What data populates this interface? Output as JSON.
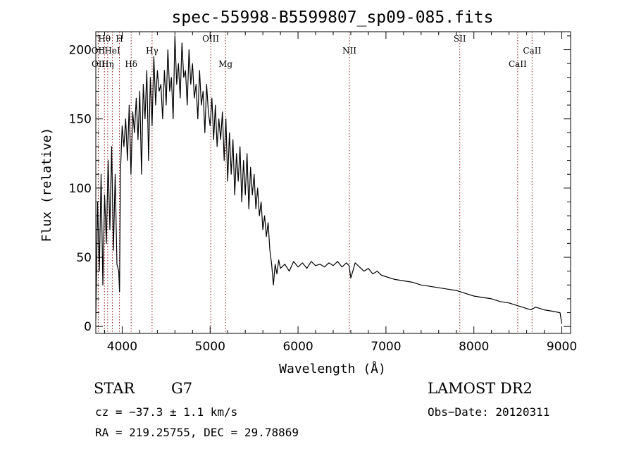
{
  "chart_data": {
    "type": "line",
    "title": "spec-55998-B5599807_sp09-085.fits",
    "xlabel": "Wavelength (Å)",
    "ylabel": "Flux (relative)",
    "xlim": [
      3700,
      9100
    ],
    "ylim": [
      -5,
      213
    ],
    "xticks": [
      4000,
      5000,
      6000,
      7000,
      8000,
      9000
    ],
    "yticks": [
      0,
      50,
      100,
      150,
      200
    ],
    "grid": false,
    "series": [
      {
        "x": [
          3700,
          3720,
          3740,
          3760,
          3780,
          3800,
          3820,
          3840,
          3860,
          3880,
          3900,
          3920,
          3940,
          3960,
          3970,
          3980,
          4000,
          4020,
          4040,
          4060,
          4080,
          4100,
          4120,
          4140,
          4160,
          4180,
          4200,
          4220,
          4240,
          4260,
          4280,
          4300,
          4320,
          4340,
          4360,
          4380,
          4400,
          4420,
          4440,
          4460,
          4480,
          4500,
          4520,
          4540,
          4560,
          4580,
          4600,
          4620,
          4640,
          4660,
          4680,
          4700,
          4720,
          4740,
          4760,
          4780,
          4800,
          4820,
          4840,
          4860,
          4880,
          4900,
          4920,
          4940,
          4960,
          4980,
          5000,
          5020,
          5040,
          5060,
          5080,
          5100,
          5120,
          5140,
          5160,
          5180,
          5200,
          5220,
          5240,
          5260,
          5280,
          5300,
          5320,
          5340,
          5360,
          5380,
          5400,
          5420,
          5440,
          5460,
          5480,
          5500,
          5520,
          5540,
          5560,
          5580,
          5600,
          5620,
          5640,
          5660,
          5680,
          5700,
          5720,
          5740,
          5760,
          5780,
          5800,
          5850,
          5900,
          5950,
          6000,
          6050,
          6100,
          6150,
          6200,
          6250,
          6300,
          6350,
          6400,
          6450,
          6500,
          6550,
          6580,
          6600,
          6650,
          6700,
          6750,
          6800,
          6850,
          6900,
          6950,
          7000,
          7100,
          7200,
          7300,
          7400,
          7500,
          7600,
          7700,
          7800,
          7850,
          7900,
          8000,
          8100,
          8200,
          8300,
          8400,
          8500,
          8550,
          8600,
          8650,
          8700,
          8800,
          8900,
          8980,
          9000
        ],
        "values": [
          5,
          90,
          40,
          110,
          30,
          95,
          60,
          120,
          70,
          130,
          55,
          110,
          45,
          40,
          25,
          110,
          145,
          130,
          150,
          120,
          160,
          110,
          155,
          140,
          165,
          135,
          170,
          110,
          175,
          150,
          185,
          120,
          180,
          145,
          195,
          160,
          185,
          170,
          175,
          150,
          185,
          160,
          200,
          170,
          180,
          150,
          210,
          175,
          190,
          165,
          205,
          180,
          185,
          160,
          200,
          175,
          190,
          165,
          175,
          150,
          185,
          160,
          170,
          140,
          175,
          155,
          145,
          165,
          135,
          160,
          130,
          150,
          135,
          155,
          120,
          150,
          105,
          140,
          110,
          135,
          95,
          125,
          105,
          130,
          90,
          120,
          95,
          125,
          85,
          115,
          95,
          110,
          85,
          100,
          80,
          90,
          70,
          80,
          65,
          75,
          55,
          45,
          30,
          45,
          38,
          48,
          42,
          45,
          40,
          47,
          43,
          46,
          42,
          47,
          44,
          45,
          43,
          46,
          44,
          47,
          43,
          46,
          44,
          35,
          46,
          43,
          40,
          42,
          38,
          40,
          37,
          36,
          34,
          33,
          32,
          30,
          29,
          28,
          27,
          26,
          25,
          24,
          22,
          21,
          20,
          18,
          17,
          15,
          14,
          13,
          12,
          14,
          12,
          11,
          10,
          2
        ]
      }
    ],
    "lines": [
      {
        "label": "Hθ",
        "wavelength": 3798
      },
      {
        "label": "OII",
        "wavelength": 3727
      },
      {
        "label": "H",
        "wavelength": 3969
      },
      {
        "label": "HeI",
        "wavelength": 3889
      },
      {
        "label": "OII",
        "wavelength": 3729
      },
      {
        "label": "Hη",
        "wavelength": 3835
      },
      {
        "label": "Hδ",
        "wavelength": 4102
      },
      {
        "label": "Hγ",
        "wavelength": 4340
      },
      {
        "label": "OIII",
        "wavelength": 5007
      },
      {
        "label": "Mg",
        "wavelength": 5175
      },
      {
        "label": "NII",
        "wavelength": 6584
      },
      {
        "label": "SII",
        "wavelength": 7840
      },
      {
        "label": "CaII",
        "wavelength": 8662
      },
      {
        "label": "CaII",
        "wavelength": 8498
      }
    ]
  },
  "info": {
    "object_class": "STAR",
    "subclass": "G7",
    "survey": "LAMOST DR2",
    "cz": "cz = −37.3 ± 1.1 km/s",
    "obs_date": "Obs−Date: 20120311",
    "coords": "RA = 219.25755, DEC =  29.78869"
  },
  "colors": {
    "spectrum": "#000000",
    "lines": "#8b1a1a"
  }
}
